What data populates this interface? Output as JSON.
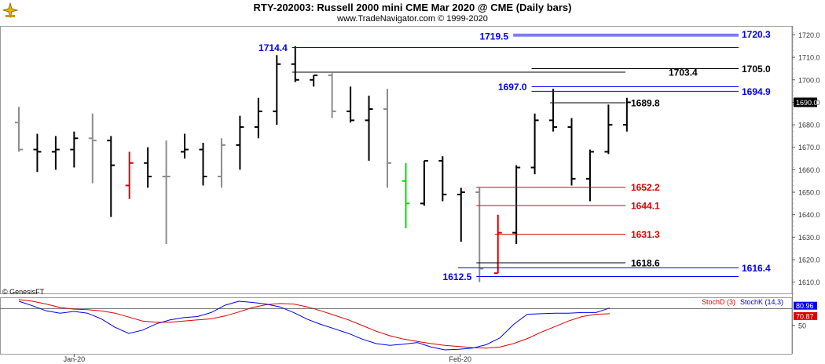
{
  "header": {
    "title": "RTY-202003:  Russell 2000 mini CME Mar 2020 @ CME  (Daily bars)",
    "subtitle": "www.TradeNavigator.com © 1999-2020"
  },
  "footer": {
    "credit": "© GenesisFT"
  },
  "colors": {
    "blue": "#0000ee",
    "red": "#dd0000",
    "black": "#000000",
    "gray": "#8c8c8c",
    "green": "#00dd00"
  },
  "chart_data": [
    {
      "type": "ohlc",
      "ylim": [
        1605,
        1724
      ],
      "y_ticks": [
        1610.0,
        1620.0,
        1630.0,
        1640.0,
        1650.0,
        1660.0,
        1670.0,
        1680.0,
        1690.0,
        1700.0,
        1710.0,
        1720.0
      ],
      "x_labels": [
        {
          "label": "Jan-20",
          "bar": 3
        },
        {
          "label": "Feb-20",
          "bar": 24
        }
      ],
      "last_price": "1690.0",
      "bars": [
        {
          "o": 1681,
          "h": 1688,
          "l": 1668,
          "c": 1669,
          "color": "gray"
        },
        {
          "o": 1669,
          "h": 1676,
          "l": 1659,
          "c": 1668,
          "color": "black"
        },
        {
          "o": 1668,
          "h": 1675,
          "l": 1660,
          "c": 1669,
          "color": "black"
        },
        {
          "o": 1669,
          "h": 1677,
          "l": 1661,
          "c": 1674,
          "color": "black"
        },
        {
          "o": 1674,
          "h": 1685,
          "l": 1654,
          "c": 1673,
          "color": "gray"
        },
        {
          "o": 1673,
          "h": 1675,
          "l": 1639,
          "c": 1662,
          "color": "black"
        },
        {
          "o": 1653,
          "h": 1668,
          "l": 1647,
          "c": 1663,
          "color": "red"
        },
        {
          "o": 1663,
          "h": 1670,
          "l": 1652,
          "c": 1657,
          "color": "black"
        },
        {
          "o": 1657,
          "h": 1673,
          "l": 1627,
          "c": 1657,
          "color": "gray"
        },
        {
          "o": 1668,
          "h": 1676,
          "l": 1665,
          "c": 1669,
          "color": "black"
        },
        {
          "o": 1669,
          "h": 1672,
          "l": 1653,
          "c": 1657,
          "color": "black"
        },
        {
          "o": 1657,
          "h": 1674,
          "l": 1652,
          "c": 1671,
          "color": "gray"
        },
        {
          "o": 1671,
          "h": 1684,
          "l": 1660,
          "c": 1679,
          "color": "black"
        },
        {
          "o": 1679,
          "h": 1692,
          "l": 1674,
          "c": 1686,
          "color": "black"
        },
        {
          "o": 1686,
          "h": 1711,
          "l": 1680,
          "c": 1707,
          "color": "black"
        },
        {
          "o": 1707,
          "h": 1715,
          "l": 1699,
          "c": 1700,
          "color": "black"
        },
        {
          "o": 1700,
          "h": 1702,
          "l": 1697,
          "c": 1702,
          "color": "black"
        },
        {
          "o": 1702,
          "h": 1703,
          "l": 1683,
          "c": 1686,
          "color": "gray"
        },
        {
          "o": 1686,
          "h": 1697,
          "l": 1681,
          "c": 1682,
          "color": "black"
        },
        {
          "o": 1682,
          "h": 1693,
          "l": 1664,
          "c": 1687,
          "color": "black"
        },
        {
          "o": 1687,
          "h": 1696,
          "l": 1652,
          "c": 1663,
          "color": "gray"
        },
        {
          "o": 1655,
          "h": 1663,
          "l": 1634,
          "c": 1645,
          "color": "green"
        },
        {
          "o": 1645,
          "h": 1664,
          "l": 1644,
          "c": 1664,
          "color": "black"
        },
        {
          "o": 1664,
          "h": 1666,
          "l": 1646,
          "c": 1649,
          "color": "black"
        },
        {
          "o": 1649,
          "h": 1652,
          "l": 1628,
          "c": 1650,
          "color": "black"
        },
        {
          "o": 1650,
          "h": 1652,
          "l": 1610,
          "c": 1616,
          "color": "gray"
        },
        {
          "o": 1614,
          "h": 1640,
          "l": 1614,
          "c": 1632,
          "color": "red"
        },
        {
          "o": 1632,
          "h": 1662,
          "l": 1627,
          "c": 1661,
          "color": "black"
        },
        {
          "o": 1661,
          "h": 1685,
          "l": 1658,
          "c": 1682,
          "color": "black"
        },
        {
          "o": 1682,
          "h": 1696,
          "l": 1677,
          "c": 1679,
          "color": "black"
        },
        {
          "o": 1679,
          "h": 1683,
          "l": 1653,
          "c": 1656,
          "color": "black"
        },
        {
          "o": 1656,
          "h": 1669,
          "l": 1646,
          "c": 1668,
          "color": "black"
        },
        {
          "o": 1668,
          "h": 1689,
          "l": 1667,
          "c": 1680,
          "color": "black"
        },
        {
          "o": 1680,
          "h": 1692,
          "l": 1677,
          "c": 1690,
          "color": "black"
        }
      ],
      "levels": [
        {
          "value": 1720.3,
          "label": "1720.3",
          "color": "blue",
          "from_bar": 27,
          "side": "right"
        },
        {
          "value": 1719.5,
          "label": "1719.5",
          "color": "blue",
          "from_bar": 27,
          "side": "left"
        },
        {
          "value": 1714.4,
          "label": "1714.4",
          "color": "blue",
          "from_bar": 15,
          "side": "left"
        },
        {
          "value": 1705.0,
          "label": "1705.0",
          "color": "black",
          "from_bar": 28,
          "side": "right"
        },
        {
          "value": 1703.4,
          "label": "1703.4",
          "color": "black",
          "from_bar": 15,
          "side": "mid"
        },
        {
          "value": 1697.0,
          "label": "1697.0",
          "color": "blue",
          "from_bar": 28,
          "side": "left"
        },
        {
          "value": 1694.9,
          "label": "1694.9",
          "color": "blue",
          "from_bar": 28,
          "side": "right"
        },
        {
          "value": 1689.8,
          "label": "1689.8",
          "color": "black",
          "from_bar": 29,
          "side": "mid"
        },
        {
          "value": 1652.2,
          "label": "1652.2",
          "color": "red",
          "from_bar": 25,
          "side": "mid"
        },
        {
          "value": 1644.1,
          "label": "1644.1",
          "color": "red",
          "from_bar": 25,
          "side": "mid"
        },
        {
          "value": 1631.3,
          "label": "1631.3",
          "color": "red",
          "from_bar": 26,
          "side": "mid"
        },
        {
          "value": 1618.6,
          "label": "1618.6",
          "color": "black",
          "from_bar": 25,
          "side": "mid"
        },
        {
          "value": 1616.4,
          "label": "1616.4",
          "color": "blue",
          "from_bar": 24,
          "side": "right"
        },
        {
          "value": 1612.5,
          "label": "1612.5",
          "color": "blue",
          "from_bar": 25,
          "side": "left"
        }
      ]
    },
    {
      "type": "line",
      "ylim": [
        0,
        100
      ],
      "y_ticks": [
        50
      ],
      "reference_line": 80,
      "series": [
        {
          "name": "StochD (3)",
          "color": "red",
          "last_label": "70.87",
          "values": [
            96,
            93,
            88,
            82,
            79,
            78,
            76,
            72,
            65,
            58,
            56,
            56,
            58,
            60,
            62,
            67,
            74,
            82,
            87,
            89,
            88,
            83,
            76,
            68,
            60,
            50,
            40,
            32,
            26,
            22,
            18,
            15,
            13,
            11,
            10,
            12,
            18,
            27,
            38,
            48,
            58,
            66,
            70,
            71
          ]
        },
        {
          "name": "StochK (14,3)",
          "color": "blue",
          "last_label": "80.96",
          "values": [
            93,
            85,
            76,
            72,
            75,
            72,
            62,
            47,
            36,
            42,
            53,
            60,
            64,
            66,
            73,
            86,
            93,
            91,
            88,
            83,
            73,
            61,
            52,
            44,
            36,
            26,
            18,
            15,
            17,
            20,
            12,
            7,
            8,
            10,
            16,
            28,
            52,
            70,
            71,
            72,
            72,
            73,
            73,
            81
          ]
        }
      ],
      "x_labels": [
        "Jan-20",
        "Feb-20"
      ]
    }
  ]
}
